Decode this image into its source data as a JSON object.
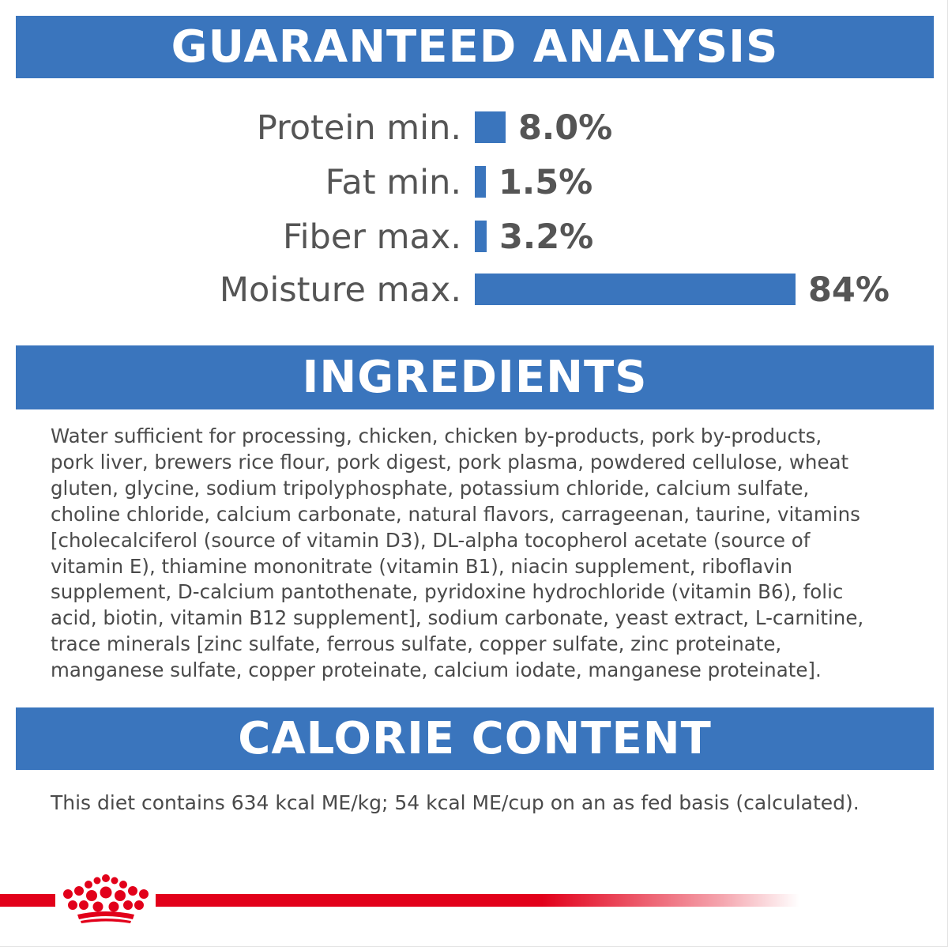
{
  "sections": {
    "guaranteed_analysis": {
      "title": "GUARANTEED ANALYSIS"
    },
    "ingredients": {
      "title": "INGREDIENTS",
      "lines": [
        "Water sufficient for processing, chicken, chicken by-products, pork by-products,",
        "pork liver, brewers rice flour, pork digest, pork plasma, powdered cellulose, wheat",
        "gluten, glycine, sodium tripolyphosphate, potassium chloride, calcium sulfate,",
        "choline chloride, calcium carbonate, natural flavors, carrageenan, taurine, vitamins",
        "[cholecalciferol (source of vitamin D3), DL-alpha tocopherol acetate (source of",
        "vitamin E), thiamine mononitrate (vitamin B1), niacin supplement, riboflavin",
        "supplement, D-calcium pantothenate, pyridoxine hydrochloride (vitamin B6), folic",
        "acid, biotin, vitamin B12 supplement], sodium carbonate, yeast extract, L-carnitine,",
        "trace minerals [zinc sulfate, ferrous sulfate, copper sulfate, zinc proteinate,",
        "manganese sulfate, copper proteinate, calcium iodate, manganese proteinate]."
      ]
    },
    "calorie_content": {
      "title": "CALORIE CONTENT",
      "text": "This diet contains 634 kcal ME/kg; 54 kcal ME/cup on an as fed basis (calculated)."
    }
  },
  "chart_data": {
    "type": "bar",
    "orientation": "horizontal",
    "categories": [
      "Protein min.",
      "Fat min.",
      "Fiber max.",
      "Moisture max."
    ],
    "values": [
      8.0,
      1.5,
      3.2,
      84
    ],
    "value_labels": [
      "8.0%",
      "1.5%",
      "3.2%",
      "84%"
    ],
    "unit": "%",
    "xlim": [
      0,
      84
    ],
    "grid": false,
    "bar_color": "#3a75bd"
  },
  "colors": {
    "band_blue": "#3a75bd",
    "brand_red": "#e2001a",
    "text_gray": "#555555"
  },
  "logo": {
    "icon": "crown-icon"
  }
}
